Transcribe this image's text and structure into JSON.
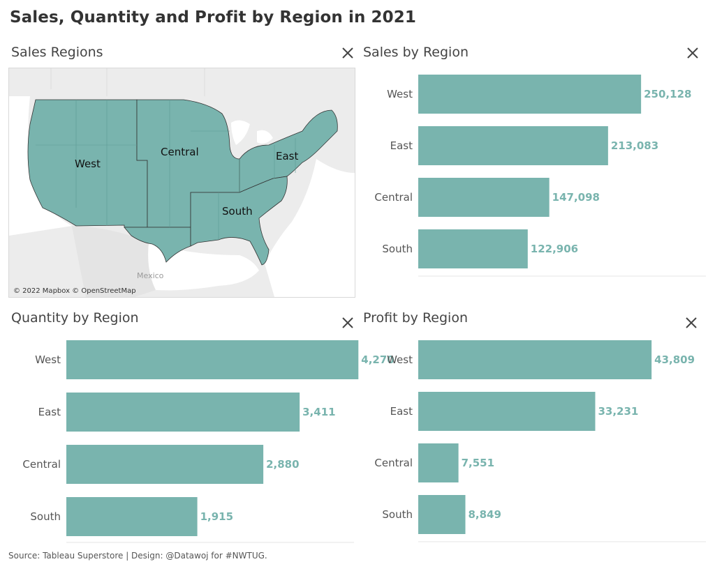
{
  "title": "Sales, Quantity and Profit by Region in 2021",
  "colors": {
    "bar": "#79b4ae",
    "value_label": "#79b4ae",
    "map_fill": "#79b4ae",
    "map_background": "#ececec",
    "water": "#ffffff"
  },
  "icons": {
    "close": "close-icon"
  },
  "map": {
    "title": "Sales Regions",
    "attribution": "© 2022 Mapbox © OpenStreetMap",
    "geo_label": "Mexico",
    "regions": [
      "West",
      "Central",
      "East",
      "South"
    ]
  },
  "footer": "Source: Tableau Superstore | Design: @Datawoj for #NWTUG.",
  "chart_data": [
    {
      "type": "bar",
      "orientation": "horizontal",
      "title": "Sales by Region",
      "categories": [
        "West",
        "East",
        "Central",
        "South"
      ],
      "values": [
        250128,
        213083,
        147098,
        122906
      ],
      "value_labels": [
        "250,128",
        "213,083",
        "147,098",
        "122,906"
      ],
      "xlabel": "",
      "ylabel": "",
      "xlim": [
        0,
        290000
      ],
      "grid": false
    },
    {
      "type": "bar",
      "orientation": "horizontal",
      "title": "Quantity by Region",
      "categories": [
        "West",
        "East",
        "Central",
        "South"
      ],
      "values": [
        4270,
        3411,
        2880,
        1915
      ],
      "value_labels": [
        "4,270",
        "3,411",
        "2,880",
        "1,915"
      ],
      "xlabel": "",
      "ylabel": "",
      "xlim": [
        0,
        4900
      ],
      "grid": false
    },
    {
      "type": "bar",
      "orientation": "horizontal",
      "title": "Profit by Region",
      "categories": [
        "West",
        "East",
        "Central",
        "South"
      ],
      "values": [
        43809,
        33231,
        7551,
        8849
      ],
      "value_labels": [
        "43,809",
        "33,231",
        "7,551",
        "8,849"
      ],
      "xlabel": "",
      "ylabel": "",
      "xlim": [
        0,
        51000
      ],
      "grid": false
    }
  ]
}
